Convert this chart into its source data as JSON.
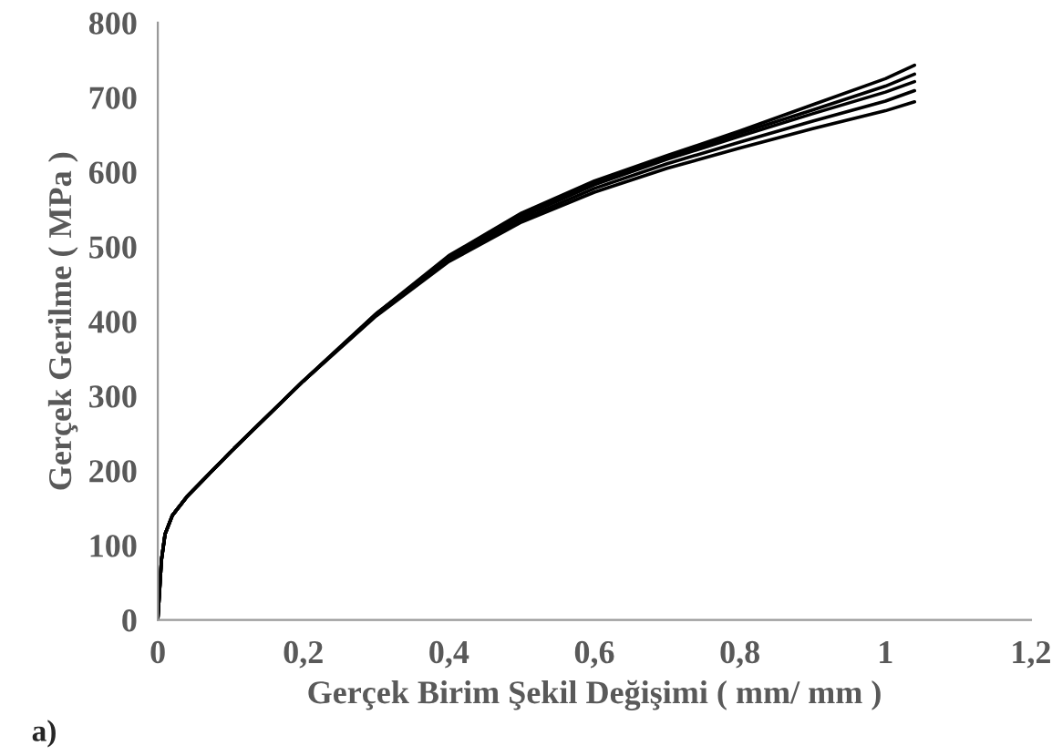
{
  "chart_data": {
    "type": "line",
    "xlabel": "Gerçek Birim Şekil Değişimi ( mm/ mm )",
    "ylabel": "Gerçek Gerilme ( MPa )",
    "annotations": [
      "a)"
    ],
    "x": [
      0,
      0.005,
      0.01,
      0.02,
      0.04,
      0.1,
      0.2,
      0.3,
      0.4,
      0.5,
      0.6,
      0.7,
      0.8,
      0.9,
      1.0,
      1.04
    ],
    "xlim": [
      0,
      1.2
    ],
    "xticks": [
      0,
      {
        "value": 0.2,
        "label": "0,2"
      },
      {
        "value": 0.4,
        "label": "0,4"
      },
      {
        "value": 0.6,
        "label": "0,6"
      },
      {
        "value": 0.8,
        "label": "0,8"
      },
      1,
      {
        "value": 1.2,
        "label": "1,2"
      }
    ],
    "ylim": [
      0,
      800
    ],
    "yticks": [
      0,
      100,
      200,
      300,
      400,
      500,
      600,
      700,
      800
    ],
    "grid": false,
    "legend": false,
    "marker": "none",
    "line_style": "solid",
    "series": [
      {
        "color": "#000000",
        "values": [
          0,
          80,
          115,
          140,
          165,
          225,
          320,
          410,
          488,
          545,
          588,
          622,
          655,
          690,
          725,
          743
        ]
      },
      {
        "color": "#000000",
        "values": [
          0,
          80,
          115,
          140,
          165,
          225,
          320,
          410,
          486,
          542,
          585,
          620,
          652,
          683,
          715,
          731
        ]
      },
      {
        "color": "#000000",
        "values": [
          0,
          80,
          115,
          140,
          165,
          225,
          320,
          410,
          485,
          540,
          583,
          617,
          648,
          678,
          707,
          721
        ]
      },
      {
        "color": "#000000",
        "values": [
          0,
          80,
          115,
          140,
          165,
          225,
          320,
          408,
          482,
          536,
          578,
          611,
          640,
          668,
          695,
          709
        ]
      },
      {
        "color": "#000000",
        "values": [
          0,
          80,
          115,
          140,
          165,
          225,
          320,
          407,
          480,
          533,
          573,
          605,
          632,
          658,
          682,
          694
        ]
      }
    ]
  }
}
